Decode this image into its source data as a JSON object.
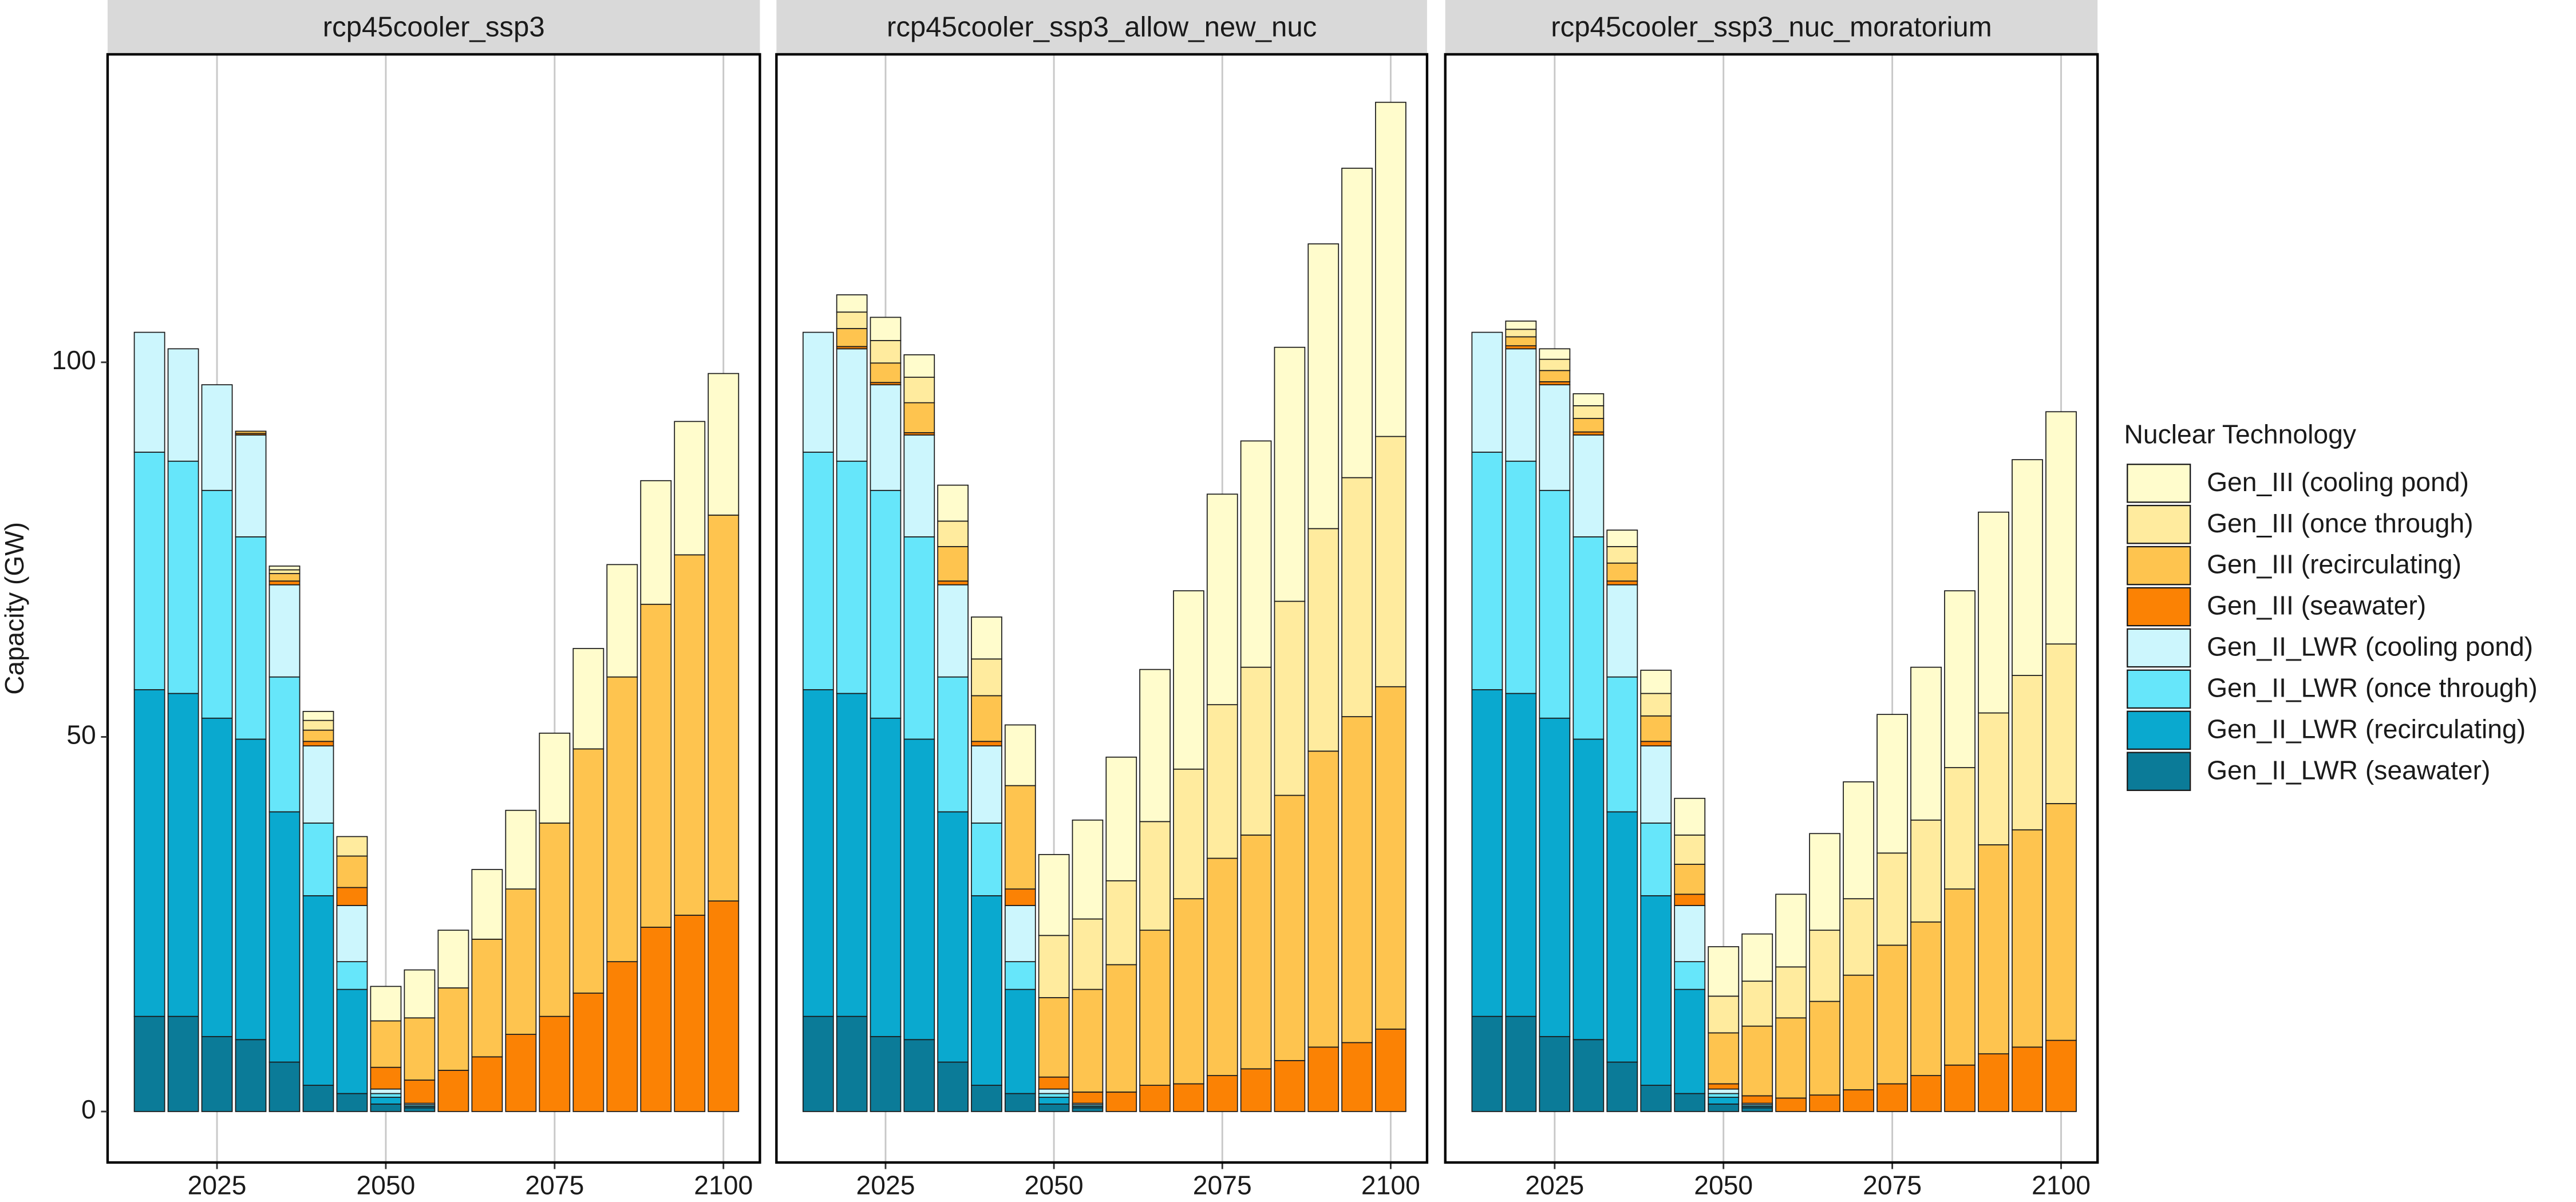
{
  "chart_data": [
    {
      "type": "bar",
      "stacked": true,
      "title": "rcp45cooler_ssp3",
      "ylabel": "Capacity (GW)",
      "legend_title": "Nuclear Technology",
      "legend": "right",
      "grid": "x",
      "x": [
        2015,
        2020,
        2025,
        2030,
        2035,
        2040,
        2045,
        2050,
        2055,
        2060,
        2065,
        2070,
        2075,
        2080,
        2085,
        2090,
        2095,
        2100
      ],
      "xlim": [
        2008.8,
        2105.4
      ],
      "xticks": [
        2025,
        2050,
        2075,
        2100
      ],
      "ylim": [
        -6.8,
        141.1
      ],
      "yticks": [
        0,
        50,
        100
      ],
      "series": [
        {
          "name": "Gen_II_LWR (seawater)",
          "color": "#0b7b98",
          "values": [
            12.7,
            12.7,
            10,
            9.6,
            6.6,
            3.5,
            2.4,
            1.0,
            0.5,
            0,
            0,
            0,
            0,
            0,
            0,
            0,
            0,
            0
          ]
        },
        {
          "name": "Gen_II_LWR (recirculating)",
          "color": "#0aa9cf",
          "values": [
            43.6,
            43.1,
            42.5,
            40.1,
            33.4,
            25.3,
            13.9,
            0.9,
            0.2,
            0,
            0,
            0,
            0,
            0,
            0,
            0,
            0,
            0
          ]
        },
        {
          "name": "Gen_II_LWR (once through)",
          "color": "#66e6fa",
          "values": [
            31.7,
            31,
            30.4,
            27,
            18,
            9.7,
            3.7,
            0.5,
            0.2,
            0,
            0,
            0,
            0,
            0,
            0,
            0,
            0,
            0
          ]
        },
        {
          "name": "Gen_II_LWR (cooling pond)",
          "color": "#ccf6fd",
          "values": [
            16,
            15,
            14.1,
            13.6,
            12.3,
            10.3,
            7.5,
            0.6,
            0.2,
            0,
            0,
            0,
            0,
            0,
            0,
            0,
            0,
            0
          ]
        },
        {
          "name": "Gen_III (seawater)",
          "color": "#fb8204",
          "values": [
            0,
            0,
            0,
            0.2,
            0.5,
            0.6,
            2.4,
            2.9,
            3.1,
            5.5,
            7.3,
            10.3,
            12.7,
            15.8,
            20,
            24.6,
            26.2,
            28.1
          ]
        },
        {
          "name": "Gen_III (recirculating)",
          "color": "#fec44f",
          "values": [
            0,
            0,
            0,
            0.3,
            1,
            1.5,
            4.2,
            6.2,
            8.3,
            11,
            15.7,
            19.4,
            25.8,
            32.6,
            38,
            43.1,
            48.1,
            51.5
          ]
        },
        {
          "name": "Gen_III (once through)",
          "color": "#ffeb9e",
          "values": [
            0,
            0,
            0,
            0,
            0.5,
            1.3,
            2.6,
            0,
            0,
            0,
            0,
            0,
            0,
            0,
            0,
            0,
            0,
            0
          ]
        },
        {
          "name": "Gen_III (cooling pond)",
          "color": "#fffccc",
          "values": [
            0,
            0,
            0,
            0,
            0.5,
            1.2,
            0,
            4.6,
            6.4,
            7.7,
            9.3,
            10.5,
            12,
            13.4,
            15,
            16.5,
            17.8,
            18.9
          ]
        }
      ]
    },
    {
      "type": "bar",
      "stacked": true,
      "title": "rcp45cooler_ssp3_allow_new_nuc",
      "grid": "x",
      "x": [
        2015,
        2020,
        2025,
        2030,
        2035,
        2040,
        2045,
        2050,
        2055,
        2060,
        2065,
        2070,
        2075,
        2080,
        2085,
        2090,
        2095,
        2100
      ],
      "xlim": [
        2008.8,
        2105.4
      ],
      "xticks": [
        2025,
        2050,
        2075,
        2100
      ],
      "ylim": [
        -6.8,
        141.1
      ],
      "yticks": [
        0,
        50,
        100
      ],
      "series": [
        {
          "name": "Gen_II_LWR (seawater)",
          "color": "#0b7b98",
          "values": [
            12.7,
            12.7,
            10,
            9.6,
            6.6,
            3.5,
            2.4,
            1.0,
            0.5,
            0,
            0,
            0,
            0,
            0,
            0,
            0,
            0,
            0
          ]
        },
        {
          "name": "Gen_II_LWR (recirculating)",
          "color": "#0aa9cf",
          "values": [
            43.6,
            43.1,
            42.5,
            40.1,
            33.4,
            25.3,
            13.9,
            0.9,
            0.2,
            0,
            0,
            0,
            0,
            0,
            0,
            0,
            0,
            0
          ]
        },
        {
          "name": "Gen_II_LWR (once through)",
          "color": "#66e6fa",
          "values": [
            31.7,
            31,
            30.4,
            27,
            18,
            9.7,
            3.7,
            0.5,
            0.2,
            0,
            0,
            0,
            0,
            0,
            0,
            0,
            0,
            0
          ]
        },
        {
          "name": "Gen_II_LWR (cooling pond)",
          "color": "#ccf6fd",
          "values": [
            16,
            15,
            14.1,
            13.6,
            12.3,
            10.3,
            7.5,
            0.6,
            0.2,
            0,
            0,
            0,
            0,
            0,
            0,
            0,
            0,
            0
          ]
        },
        {
          "name": "Gen_III (seawater)",
          "color": "#fb8204",
          "values": [
            0,
            0.3,
            0.3,
            0.3,
            0.5,
            0.6,
            2.2,
            1.6,
            1.5,
            2.6,
            3.5,
            3.7,
            4.8,
            5.7,
            6.8,
            8.6,
            9.2,
            11
          ]
        },
        {
          "name": "Gen_III (recirculating)",
          "color": "#fec44f",
          "values": [
            0,
            2.4,
            2.6,
            4,
            4.6,
            6.1,
            13.8,
            10.6,
            13.7,
            17,
            20.7,
            24.7,
            29,
            31.2,
            35.4,
            39.5,
            43.5,
            45.7
          ]
        },
        {
          "name": "Gen_III (once through)",
          "color": "#ffeb9e",
          "values": [
            0,
            2.2,
            3,
            3.4,
            3.4,
            4.9,
            0,
            8.3,
            9.4,
            11.2,
            14.5,
            17.3,
            20.5,
            22.4,
            25.9,
            29.7,
            31.9,
            33.4
          ]
        },
        {
          "name": "Gen_III (cooling pond)",
          "color": "#fffccc",
          "values": [
            0,
            2.3,
            3.1,
            3,
            4.8,
            5.6,
            8.1,
            10.8,
            13.2,
            16.5,
            20.3,
            23.8,
            28.1,
            30.2,
            33.9,
            38,
            41.3,
            44.6
          ]
        }
      ]
    },
    {
      "type": "bar",
      "stacked": true,
      "title": "rcp45cooler_ssp3_nuc_moratorium",
      "grid": "x",
      "x": [
        2015,
        2020,
        2025,
        2030,
        2035,
        2040,
        2045,
        2050,
        2055,
        2060,
        2065,
        2070,
        2075,
        2080,
        2085,
        2090,
        2095,
        2100
      ],
      "xlim": [
        2008.8,
        2105.4
      ],
      "xticks": [
        2025,
        2050,
        2075,
        2100
      ],
      "ylim": [
        -6.8,
        141.1
      ],
      "yticks": [
        0,
        50,
        100
      ],
      "series": [
        {
          "name": "Gen_II_LWR (seawater)",
          "color": "#0b7b98",
          "values": [
            12.7,
            12.7,
            10,
            9.6,
            6.6,
            3.5,
            2.4,
            1.0,
            0.5,
            0,
            0,
            0,
            0,
            0,
            0,
            0,
            0,
            0
          ]
        },
        {
          "name": "Gen_II_LWR (recirculating)",
          "color": "#0aa9cf",
          "values": [
            43.6,
            43.1,
            42.5,
            40.1,
            33.4,
            25.3,
            13.9,
            0.9,
            0.2,
            0,
            0,
            0,
            0,
            0,
            0,
            0,
            0,
            0
          ]
        },
        {
          "name": "Gen_II_LWR (once through)",
          "color": "#66e6fa",
          "values": [
            31.7,
            31,
            30.4,
            27,
            18,
            9.7,
            3.7,
            0.5,
            0.2,
            0,
            0,
            0,
            0,
            0,
            0,
            0,
            0,
            0
          ]
        },
        {
          "name": "Gen_II_LWR (cooling pond)",
          "color": "#ccf6fd",
          "values": [
            16,
            15,
            14.1,
            13.6,
            12.3,
            10.3,
            7.5,
            0.6,
            0.2,
            0,
            0,
            0,
            0,
            0,
            0,
            0,
            0,
            0
          ]
        },
        {
          "name": "Gen_III (seawater)",
          "color": "#fb8204",
          "values": [
            0,
            0.4,
            0.4,
            0.4,
            0.5,
            0.6,
            1.5,
            0.7,
            1,
            1.8,
            2.2,
            2.9,
            3.7,
            4.8,
            6.2,
            7.7,
            8.6,
            9.5
          ]
        },
        {
          "name": "Gen_III (recirculating)",
          "color": "#fec44f",
          "values": [
            0,
            1.2,
            1.5,
            1.8,
            2.4,
            3.4,
            4,
            6.8,
            9.3,
            10.7,
            12.5,
            15.3,
            18.5,
            20.5,
            23.5,
            27.9,
            29,
            31.6
          ]
        },
        {
          "name": "Gen_III (once through)",
          "color": "#ffeb9e",
          "values": [
            0,
            1,
            1.5,
            1.7,
            2.2,
            3,
            3.9,
            4.9,
            6,
            6.8,
            9.5,
            10.2,
            12.3,
            13.6,
            16.2,
            17.6,
            20.6,
            21.3
          ]
        },
        {
          "name": "Gen_III (cooling pond)",
          "color": "#fffccc",
          "values": [
            0,
            1.1,
            1.4,
            1.6,
            2.2,
            3.1,
            4.9,
            6.6,
            6.3,
            9.7,
            12.9,
            15.6,
            18.5,
            20.4,
            23.6,
            26.8,
            28.8,
            31
          ]
        }
      ]
    }
  ]
}
